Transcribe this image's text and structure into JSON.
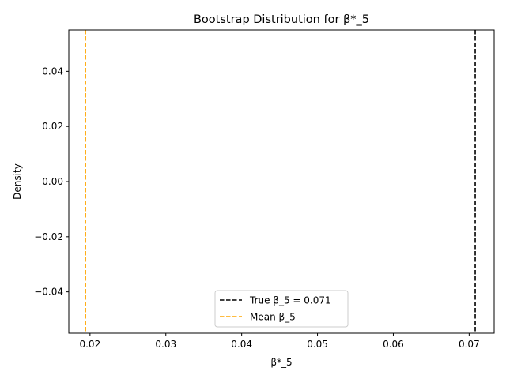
{
  "chart_data": {
    "type": "line",
    "title": "Bootstrap Distribution for β*_5",
    "xlabel": "β*_5",
    "ylabel": "Density",
    "xlim": [
      0.0172,
      0.0733
    ],
    "ylim": [
      -0.055,
      0.055
    ],
    "x_ticks": [
      {
        "value": 0.02,
        "label": "0.02"
      },
      {
        "value": 0.03,
        "label": "0.03"
      },
      {
        "value": 0.04,
        "label": "0.04"
      },
      {
        "value": 0.05,
        "label": "0.05"
      },
      {
        "value": 0.06,
        "label": "0.06"
      },
      {
        "value": 0.07,
        "label": "0.07"
      }
    ],
    "y_ticks": [
      {
        "value": -0.04,
        "label": "−0.04"
      },
      {
        "value": -0.02,
        "label": "−0.02"
      },
      {
        "value": 0.0,
        "label": "0.00"
      },
      {
        "value": 0.02,
        "label": "0.02"
      },
      {
        "value": 0.04,
        "label": "0.04"
      }
    ],
    "grid": false,
    "legend_position": "lower-center",
    "series": [
      {
        "name": "True β_5 = 0.071",
        "x": 0.0708,
        "color": "#000000",
        "style": "dashed",
        "kind": "vline"
      },
      {
        "name": "Mean β_5",
        "x": 0.0194,
        "color": "#ffa500",
        "style": "dashed",
        "kind": "vline"
      }
    ]
  }
}
